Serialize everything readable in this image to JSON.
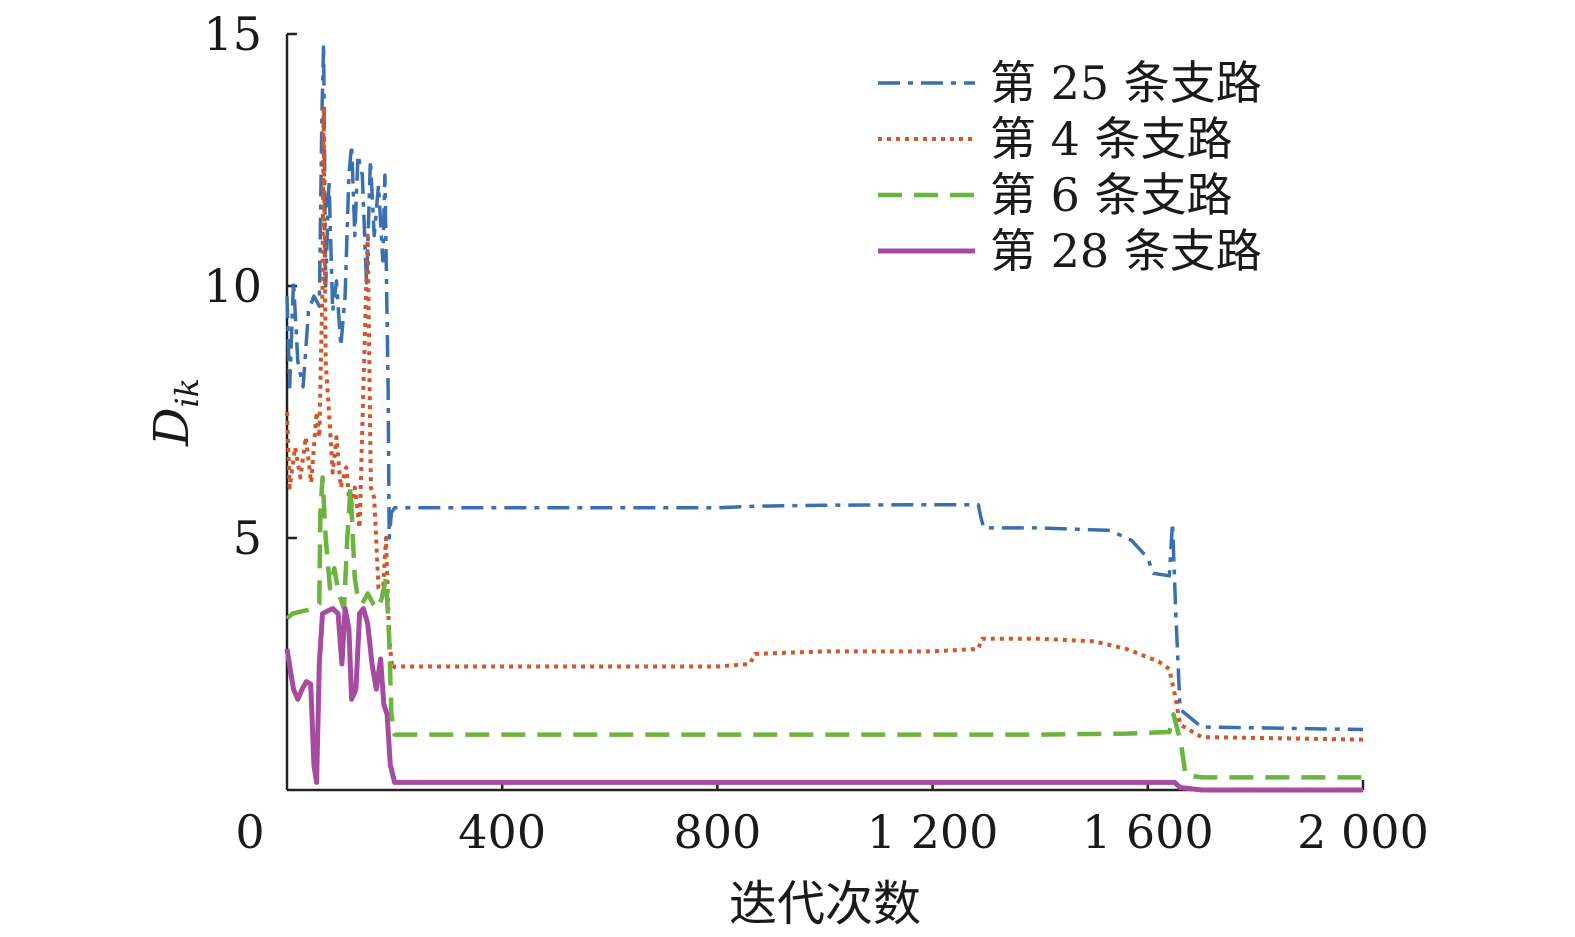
{
  "chart_data": {
    "type": "line",
    "xlabel": "迭代次数",
    "ylabel": "D",
    "ylabel_sub": "ik",
    "xlim": [
      0,
      2000
    ],
    "ylim": [
      0,
      15
    ],
    "x_ticks": [
      0,
      400,
      800,
      1200,
      1600,
      2000
    ],
    "x_tick_labels": [
      "0",
      "400",
      "800",
      "1 200",
      "1 600",
      "2 000"
    ],
    "y_ticks": [
      5,
      10,
      15
    ],
    "y_tick_labels": [
      "5",
      "10",
      "15"
    ],
    "grid": false,
    "legend_position": "top-right",
    "series": [
      {
        "name": "第 25 条支路",
        "color": "#3a6fb0",
        "dash": "dashdot",
        "points": [
          [
            0,
            9.8
          ],
          [
            5,
            8.0
          ],
          [
            12,
            10.1
          ],
          [
            20,
            8.5
          ],
          [
            30,
            8.0
          ],
          [
            40,
            9.5
          ],
          [
            50,
            9.8
          ],
          [
            60,
            9.6
          ],
          [
            65,
            13.5
          ],
          [
            68,
            14.8
          ],
          [
            72,
            10.0
          ],
          [
            78,
            12.1
          ],
          [
            85,
            9.5
          ],
          [
            92,
            10.1
          ],
          [
            100,
            8.8
          ],
          [
            108,
            9.8
          ],
          [
            115,
            12.2
          ],
          [
            120,
            12.8
          ],
          [
            126,
            11.0
          ],
          [
            132,
            12.6
          ],
          [
            140,
            12.2
          ],
          [
            148,
            10.0
          ],
          [
            155,
            12.5
          ],
          [
            162,
            11.0
          ],
          [
            170,
            12.0
          ],
          [
            178,
            10.5
          ],
          [
            182,
            12.2
          ],
          [
            188,
            8.0
          ],
          [
            190,
            5.0
          ],
          [
            194,
            5.5
          ],
          [
            200,
            5.6
          ],
          [
            400,
            5.6
          ],
          [
            800,
            5.6
          ],
          [
            870,
            5.63
          ],
          [
            1000,
            5.65
          ],
          [
            1200,
            5.66
          ],
          [
            1285,
            5.66
          ],
          [
            1290,
            5.4
          ],
          [
            1295,
            5.2
          ],
          [
            1400,
            5.2
          ],
          [
            1530,
            5.15
          ],
          [
            1570,
            4.95
          ],
          [
            1600,
            4.6
          ],
          [
            1610,
            4.3
          ],
          [
            1640,
            4.25
          ],
          [
            1646,
            5.3
          ],
          [
            1652,
            3.5
          ],
          [
            1660,
            1.6
          ],
          [
            1700,
            1.25
          ],
          [
            2000,
            1.2
          ]
        ]
      },
      {
        "name": "第 4 条支路",
        "color": "#d2562a",
        "dash": "dotted",
        "points": [
          [
            0,
            7.5
          ],
          [
            5,
            6.0
          ],
          [
            15,
            6.8
          ],
          [
            25,
            6.2
          ],
          [
            35,
            7.0
          ],
          [
            45,
            6.1
          ],
          [
            55,
            7.5
          ],
          [
            60,
            7.0
          ],
          [
            66,
            10.0
          ],
          [
            68,
            13.5
          ],
          [
            72,
            8.5
          ],
          [
            78,
            7.5
          ],
          [
            85,
            6.3
          ],
          [
            92,
            7.0
          ],
          [
            100,
            6.0
          ],
          [
            110,
            6.4
          ],
          [
            118,
            5.5
          ],
          [
            126,
            6.0
          ],
          [
            135,
            5.2
          ],
          [
            142,
            8.0
          ],
          [
            150,
            11.0
          ],
          [
            156,
            6.0
          ],
          [
            162,
            5.8
          ],
          [
            170,
            4.0
          ],
          [
            178,
            3.9
          ],
          [
            184,
            5.0
          ],
          [
            190,
            3.0
          ],
          [
            196,
            2.4
          ],
          [
            200,
            2.45
          ],
          [
            400,
            2.45
          ],
          [
            800,
            2.45
          ],
          [
            860,
            2.5
          ],
          [
            870,
            2.7
          ],
          [
            1000,
            2.75
          ],
          [
            1200,
            2.75
          ],
          [
            1285,
            2.8
          ],
          [
            1292,
            3.0
          ],
          [
            1400,
            3.0
          ],
          [
            1500,
            2.95
          ],
          [
            1560,
            2.8
          ],
          [
            1620,
            2.55
          ],
          [
            1640,
            2.4
          ],
          [
            1652,
            1.8
          ],
          [
            1660,
            1.3
          ],
          [
            1700,
            1.05
          ],
          [
            2000,
            1.0
          ]
        ]
      },
      {
        "name": "第 6 条支路",
        "color": "#6db33f",
        "dash": "dashed",
        "points": [
          [
            0,
            3.4
          ],
          [
            10,
            3.5
          ],
          [
            30,
            3.55
          ],
          [
            50,
            3.6
          ],
          [
            60,
            3.7
          ],
          [
            62,
            5.5
          ],
          [
            66,
            6.2
          ],
          [
            72,
            5.0
          ],
          [
            80,
            4.0
          ],
          [
            88,
            4.4
          ],
          [
            96,
            3.9
          ],
          [
            106,
            3.6
          ],
          [
            112,
            5.0
          ],
          [
            118,
            6.0
          ],
          [
            126,
            4.2
          ],
          [
            132,
            3.8
          ],
          [
            140,
            3.7
          ],
          [
            150,
            3.9
          ],
          [
            160,
            3.7
          ],
          [
            168,
            3.6
          ],
          [
            176,
            3.8
          ],
          [
            184,
            4.2
          ],
          [
            190,
            3.0
          ],
          [
            194,
            1.5
          ],
          [
            200,
            1.1
          ],
          [
            400,
            1.1
          ],
          [
            800,
            1.1
          ],
          [
            1000,
            1.1
          ],
          [
            1200,
            1.1
          ],
          [
            1400,
            1.1
          ],
          [
            1560,
            1.12
          ],
          [
            1640,
            1.15
          ],
          [
            1648,
            1.5
          ],
          [
            1655,
            1.2
          ],
          [
            1662,
            0.9
          ],
          [
            1670,
            0.3
          ],
          [
            1700,
            0.25
          ],
          [
            2000,
            0.25
          ]
        ]
      },
      {
        "name": "第 28 条支路",
        "color": "#a64ca0",
        "dash": "solid",
        "points": [
          [
            0,
            2.8
          ],
          [
            6,
            2.4
          ],
          [
            12,
            2.0
          ],
          [
            20,
            1.8
          ],
          [
            28,
            2.0
          ],
          [
            36,
            2.15
          ],
          [
            44,
            2.1
          ],
          [
            50,
            0.5
          ],
          [
            55,
            0.15
          ],
          [
            60,
            2.5
          ],
          [
            66,
            3.5
          ],
          [
            75,
            3.55
          ],
          [
            85,
            3.6
          ],
          [
            95,
            3.5
          ],
          [
            102,
            2.5
          ],
          [
            108,
            3.6
          ],
          [
            115,
            3.2
          ],
          [
            120,
            1.8
          ],
          [
            128,
            2.0
          ],
          [
            135,
            3.5
          ],
          [
            142,
            3.6
          ],
          [
            150,
            3.3
          ],
          [
            158,
            2.5
          ],
          [
            166,
            2.0
          ],
          [
            174,
            2.6
          ],
          [
            180,
            1.7
          ],
          [
            186,
            1.5
          ],
          [
            192,
            0.5
          ],
          [
            200,
            0.15
          ],
          [
            400,
            0.15
          ],
          [
            800,
            0.15
          ],
          [
            1200,
            0.15
          ],
          [
            1400,
            0.15
          ],
          [
            1600,
            0.15
          ],
          [
            1650,
            0.15
          ],
          [
            1660,
            0.05
          ],
          [
            1700,
            0.0
          ],
          [
            2000,
            0.0
          ]
        ]
      }
    ]
  }
}
